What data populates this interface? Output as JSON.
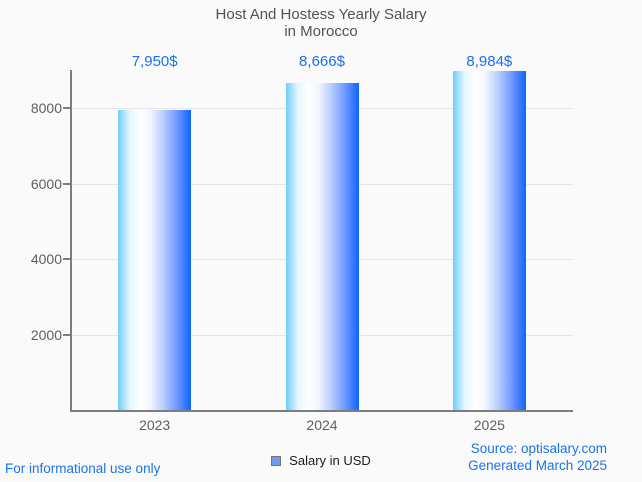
{
  "title": {
    "line1": "Host And Hostess Yearly Salary",
    "line2": "in Morocco"
  },
  "chart_data": {
    "type": "bar",
    "title": "Host And Hostess Yearly Salary in Morocco",
    "categories": [
      "2023",
      "2024",
      "2025"
    ],
    "series": [
      {
        "name": "Salary in USD",
        "values": [
          7950,
          8666,
          8984
        ]
      }
    ],
    "value_labels": [
      "7,950$",
      "8,666$",
      "8,984$"
    ],
    "y_ticks": [
      8000,
      6000,
      4000,
      2000
    ],
    "y_tick_labels": [
      "8000",
      "6000",
      "4000",
      "2000"
    ],
    "ylim": [
      0,
      9000
    ],
    "grid": true,
    "legend_position": "bottom",
    "colors": {
      "bar_gradient_left": "#6fcdfb",
      "bar_gradient_mid": "#ffffff",
      "bar_gradient_right": "#0f65fd",
      "value_label_blue": "#1a6ff0",
      "axis_text": "#5f5f5f",
      "gridline": "#e6e6e6",
      "axis_line": "#7d7d7d",
      "background": "#fafafa",
      "title_text": "#525252",
      "footer_link_blue": "#1a73e8"
    }
  },
  "legend": {
    "label": "Salary in USD",
    "marker_fill": "#6d9eeb",
    "marker_border": "#757575"
  },
  "footer": {
    "left_note": "For informational use only",
    "source": "Source: optisalary.com",
    "generated": "Generated March 2025"
  }
}
